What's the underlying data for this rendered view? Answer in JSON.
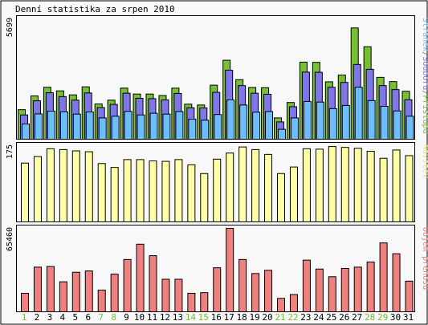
{
  "title": "Denní statistika za srpen 2010",
  "colors": {
    "background": "#f8f8f8",
    "green": "#77c032",
    "purple": "#7d77e8",
    "blue": "#6cbef8",
    "yellow": "#ffffa6",
    "red": "#f08080",
    "weekday_label": "#000000",
    "weekend_label": "#77c032"
  },
  "chart_data": [
    {
      "type": "bar",
      "panel": "top",
      "y_max_label": "5699",
      "ylim": [
        0,
        5699
      ],
      "legend_parts": [
        {
          "text": "Stránek",
          "color": "#6cbef8"
        },
        {
          "text": "/",
          "color": "#777777"
        },
        {
          "text": "Souborů",
          "color": "#7d77e8"
        },
        {
          "text": "/",
          "color": "#777777"
        },
        {
          "text": "Přístupů",
          "color": "#77c032"
        }
      ],
      "categories": [
        "1",
        "2",
        "3",
        "4",
        "5",
        "6",
        "7",
        "8",
        "9",
        "10",
        "11",
        "12",
        "13",
        "14",
        "15",
        "16",
        "17",
        "18",
        "19",
        "20",
        "21",
        "22",
        "23",
        "24",
        "25",
        "26",
        "27",
        "28",
        "29",
        "30",
        "31"
      ],
      "series": [
        {
          "name": "Přístupů",
          "values": [
            1400,
            2050,
            2460,
            2290,
            2100,
            2480,
            1670,
            1850,
            2420,
            2140,
            2140,
            2070,
            2420,
            1660,
            1620,
            2560,
            3740,
            2820,
            2450,
            2440,
            1010,
            1740,
            3650,
            3640,
            2720,
            3040,
            5270,
            4380,
            2930,
            2730,
            2270
          ]
        },
        {
          "name": "Souborů",
          "values": [
            1150,
            1820,
            2200,
            2020,
            1850,
            2190,
            1500,
            1650,
            2180,
            1940,
            1920,
            1860,
            2170,
            1490,
            1480,
            2220,
            3270,
            2540,
            2180,
            2130,
            820,
            1540,
            3180,
            3170,
            2460,
            2690,
            3540,
            3310,
            2540,
            2350,
            1870
          ]
        },
        {
          "name": "Stránek",
          "values": [
            720,
            1200,
            1330,
            1300,
            1190,
            1290,
            1010,
            1090,
            1320,
            1150,
            1230,
            1190,
            1310,
            950,
            900,
            1170,
            1860,
            1620,
            1280,
            1310,
            470,
            1010,
            1790,
            1760,
            1450,
            1600,
            2460,
            1830,
            1560,
            1340,
            1090
          ]
        }
      ]
    },
    {
      "type": "bar",
      "panel": "middle",
      "y_max_label": "175",
      "ylim": [
        0,
        175
      ],
      "legend_parts": [
        {
          "text": "Návštěv",
          "color": "#e8e87a"
        }
      ],
      "categories": [
        "1",
        "2",
        "3",
        "4",
        "5",
        "6",
        "7",
        "8",
        "9",
        "10",
        "11",
        "12",
        "13",
        "14",
        "15",
        "16",
        "17",
        "18",
        "19",
        "20",
        "21",
        "22",
        "23",
        "24",
        "25",
        "26",
        "27",
        "28",
        "29",
        "30",
        "31"
      ],
      "series": [
        {
          "name": "Návštěv",
          "values": [
            135,
            150,
            168,
            166,
            163,
            161,
            134,
            125,
            143,
            143,
            140,
            139,
            143,
            131,
            111,
            144,
            158,
            172,
            166,
            155,
            111,
            126,
            168,
            167,
            173,
            171,
            169,
            162,
            146,
            165,
            152
          ]
        }
      ]
    },
    {
      "type": "bar",
      "panel": "bottom",
      "y_max_label": "65460",
      "ylim": [
        0,
        65460
      ],
      "legend_parts": [
        {
          "text": "Objem přenosu",
          "color": "#f08080"
        }
      ],
      "categories": [
        "1",
        "2",
        "3",
        "4",
        "5",
        "6",
        "7",
        "8",
        "9",
        "10",
        "11",
        "12",
        "13",
        "14",
        "15",
        "16",
        "17",
        "18",
        "19",
        "20",
        "21",
        "22",
        "23",
        "24",
        "25",
        "26",
        "27",
        "28",
        "29",
        "30",
        "31"
      ],
      "series": [
        {
          "name": "Objem přenosu",
          "values": [
            14500,
            35000,
            35500,
            23500,
            31000,
            32000,
            17000,
            29500,
            41000,
            53000,
            44000,
            25500,
            25500,
            14500,
            15000,
            34500,
            65460,
            41000,
            30000,
            32500,
            10500,
            13500,
            40500,
            33500,
            27500,
            34000,
            35000,
            39000,
            54000,
            45500,
            24000
          ]
        }
      ]
    }
  ],
  "x_axis": {
    "labels": [
      "1",
      "2",
      "3",
      "4",
      "5",
      "6",
      "7",
      "8",
      "9",
      "10",
      "11",
      "12",
      "13",
      "14",
      "15",
      "16",
      "17",
      "18",
      "19",
      "20",
      "21",
      "22",
      "23",
      "24",
      "25",
      "26",
      "27",
      "28",
      "29",
      "30",
      "31"
    ],
    "weekend": [
      1,
      7,
      8,
      14,
      15,
      21,
      22,
      28,
      29
    ]
  }
}
